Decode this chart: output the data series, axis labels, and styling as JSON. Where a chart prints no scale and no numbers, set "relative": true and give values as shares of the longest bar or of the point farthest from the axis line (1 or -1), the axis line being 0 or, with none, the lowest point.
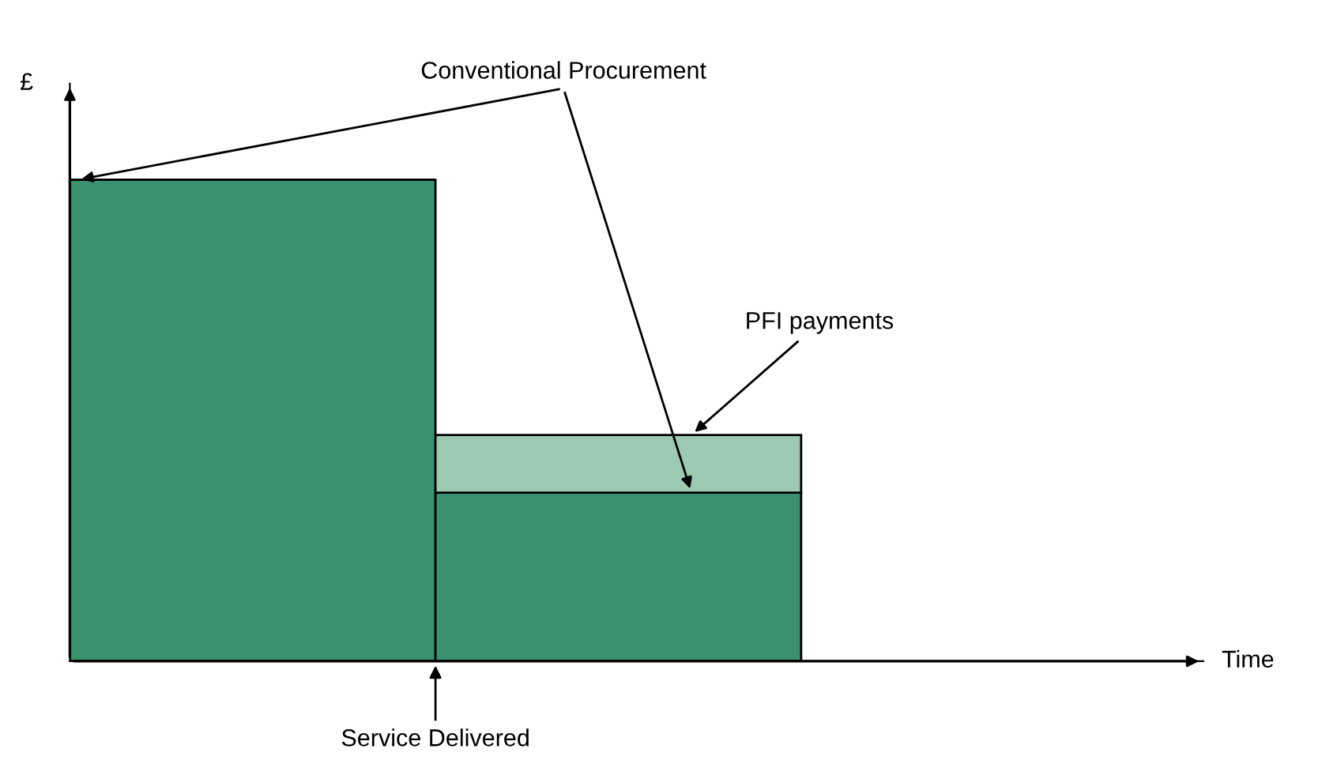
{
  "chart_data": {
    "type": "bar",
    "relative": true,
    "stacked": true,
    "ylabel": "£",
    "categories": [
      null,
      null
    ],
    "series": [
      {
        "name": "Conventional Procurement",
        "color": "#3a9270",
        "values": [
          1.0,
          0.35
        ]
      },
      {
        "name": "PFI payments",
        "color": "#9cc9b1",
        "values": [
          null,
          0.12
        ]
      }
    ],
    "annotations": [
      {
        "text": "Service Delivered"
      },
      "Time"
    ],
    "grid": false,
    "legend": false
  }
}
